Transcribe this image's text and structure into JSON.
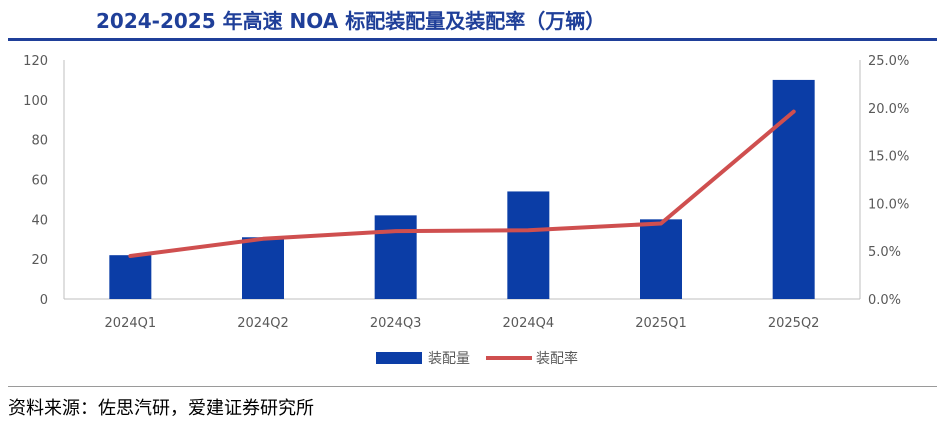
{
  "title": "2024-2025 年高速 NOA 标配装配量及装配率（万辆）",
  "source": "资料来源：佐思汽研，爱建证券研究所",
  "colors": {
    "bar": "#0b3da6",
    "line": "#cf4f4f",
    "title": "#1f3f99"
  },
  "chart_data": {
    "type": "bar+line",
    "categories": [
      "2024Q1",
      "2024Q2",
      "2024Q3",
      "2024Q4",
      "2025Q1",
      "2025Q2"
    ],
    "series": [
      {
        "name": "装配量",
        "type": "bar",
        "axis": "left",
        "values": [
          22,
          31,
          42,
          54,
          40,
          110
        ]
      },
      {
        "name": "装配率",
        "type": "line",
        "axis": "right",
        "values": [
          4.5,
          6.3,
          7.1,
          7.2,
          7.9,
          19.6
        ]
      }
    ],
    "y_left": {
      "min": 0,
      "max": 120,
      "ticks": [
        "0",
        "20",
        "40",
        "60",
        "80",
        "100",
        "120"
      ],
      "tick_values": [
        0,
        20,
        40,
        60,
        80,
        100,
        120
      ]
    },
    "y_right": {
      "min": 0,
      "max": 25,
      "ticks": [
        "0.0%",
        "5.0%",
        "10.0%",
        "15.0%",
        "20.0%",
        "25.0%"
      ],
      "tick_values": [
        0,
        5,
        10,
        15,
        20,
        25
      ]
    },
    "legend": {
      "position": "bottom-center",
      "items": [
        "装配量",
        "装配率"
      ]
    },
    "grid": false
  }
}
